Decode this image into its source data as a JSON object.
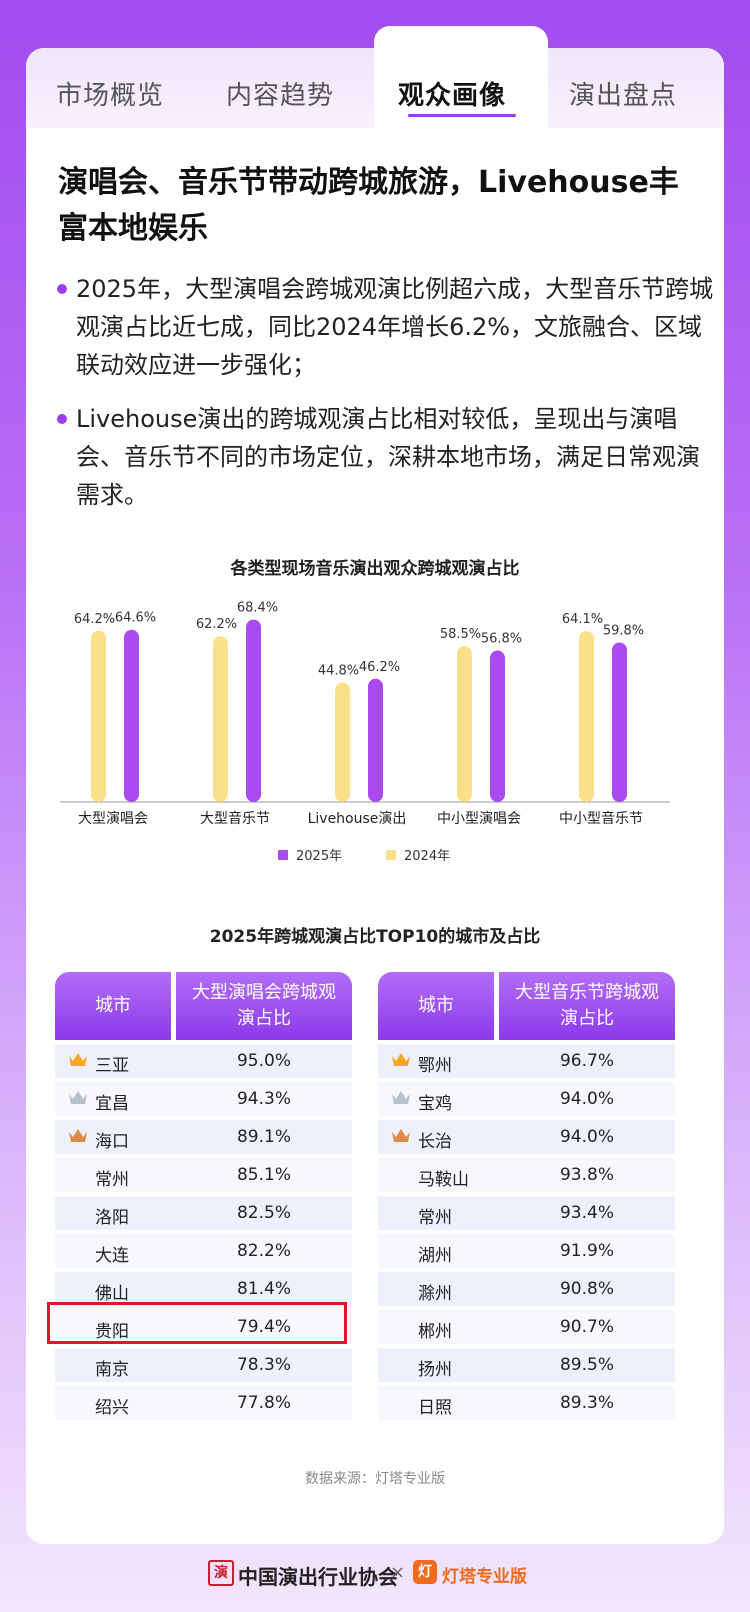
{
  "tabs": [
    {
      "label": "市场概览"
    },
    {
      "label": "内容趋势"
    },
    {
      "label": "观众画像"
    },
    {
      "label": "演出盘点"
    }
  ],
  "active_tab": "观众画像",
  "headline": "演唱会、音乐节带动跨城旅游，Livehouse丰富本地娱乐",
  "bullets": [
    "2025年，大型演唱会跨城观演比例超六成，大型音乐节跨城观演占比近七成，同比2024年增长6.2%，文旅融合、区域联动效应进一步强化；",
    "Livehouse演出的跨城观演占比相对较低，呈现出与演唱会、音乐节不同的市场定位，深耕本地市场，满足日常观演需求。"
  ],
  "chart_data": {
    "type": "bar",
    "title": "各类型现场音乐演出观众跨城观演占比",
    "categories": [
      "大型演唱会",
      "大型音乐节",
      "Livehouse演出",
      "中小型演唱会",
      "中小型音乐节"
    ],
    "series": [
      {
        "name": "2024年",
        "values": [
          64.2,
          62.2,
          44.8,
          58.5,
          64.1
        ],
        "color": "#fbe08a"
      },
      {
        "name": "2025年",
        "values": [
          64.6,
          68.4,
          46.2,
          56.8,
          59.8
        ],
        "color": "#a94bf0"
      }
    ],
    "value_labels": {
      "2024年": [
        "64.2%",
        "62.2%",
        "44.8%",
        "58.5%",
        "64.1%"
      ],
      "2025年": [
        "64.6%",
        "68.4%",
        "46.2%",
        "56.8%",
        "59.8%"
      ]
    },
    "legend": [
      "2025年",
      "2024年"
    ],
    "legend_position": "bottom",
    "ylim": [
      0,
      75
    ],
    "grid": false
  },
  "tables_title": "2025年跨城观演占比TOP10的城市及占比",
  "concert_table": {
    "headers": [
      "城市",
      "大型演唱会跨城观演占比"
    ],
    "rows": [
      {
        "city": "三亚",
        "value": "95.0%",
        "crown": "gold"
      },
      {
        "city": "宜昌",
        "value": "94.3%",
        "crown": "silver"
      },
      {
        "city": "海口",
        "value": "89.1%",
        "crown": "bronze"
      },
      {
        "city": "常州",
        "value": "85.1%",
        "crown": ""
      },
      {
        "city": "洛阳",
        "value": "82.5%",
        "crown": ""
      },
      {
        "city": "大连",
        "value": "82.2%",
        "crown": ""
      },
      {
        "city": "佛山",
        "value": "81.4%",
        "crown": ""
      },
      {
        "city": "贵阳",
        "value": "79.4%",
        "crown": ""
      },
      {
        "city": "南京",
        "value": "78.3%",
        "crown": ""
      },
      {
        "city": "绍兴",
        "value": "77.8%",
        "crown": ""
      }
    ],
    "highlighted_city": "贵阳"
  },
  "festival_table": {
    "headers": [
      "城市",
      "大型音乐节跨城观演占比"
    ],
    "rows": [
      {
        "city": "鄂州",
        "value": "96.7%",
        "crown": "gold"
      },
      {
        "city": "宝鸡",
        "value": "94.0%",
        "crown": "silver"
      },
      {
        "city": "长治",
        "value": "94.0%",
        "crown": "bronze"
      },
      {
        "city": "马鞍山",
        "value": "93.8%",
        "crown": ""
      },
      {
        "city": "常州",
        "value": "93.4%",
        "crown": ""
      },
      {
        "city": "湖州",
        "value": "91.9%",
        "crown": ""
      },
      {
        "city": "滁州",
        "value": "90.8%",
        "crown": ""
      },
      {
        "city": "郴州",
        "value": "90.7%",
        "crown": ""
      },
      {
        "city": "扬州",
        "value": "89.5%",
        "crown": ""
      },
      {
        "city": "日照",
        "value": "89.3%",
        "crown": ""
      }
    ]
  },
  "source": "数据来源：灯塔专业版",
  "footer": {
    "org": "中国演出行业协会",
    "separator": "×",
    "brand": "灯塔专业版",
    "seal_char": "演",
    "brand_logo_char": "灯"
  },
  "colors": {
    "accent": "#9b3ef0",
    "bar_2025": "#a94bf0",
    "bar_2024": "#fbe08a",
    "highlight_border": "#e0152d",
    "crown_gold": "#f5a623",
    "crown_silver": "#b7bfcc",
    "crown_bronze": "#e08a4a"
  }
}
